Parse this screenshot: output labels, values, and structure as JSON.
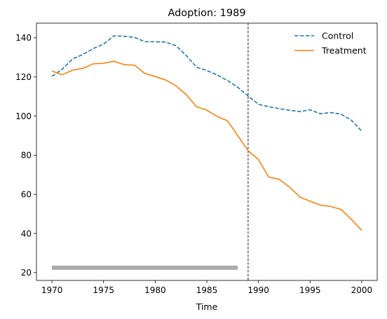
{
  "chart_data": {
    "type": "line",
    "title": "Adoption: 1989",
    "xlabel": "Time",
    "ylabel": "",
    "xlim": [
      1968.5,
      2001.5
    ],
    "ylim": [
      16,
      147.5
    ],
    "xticks": [
      1970,
      1975,
      1980,
      1985,
      1990,
      1995,
      2000
    ],
    "yticks": [
      20,
      40,
      60,
      80,
      100,
      120,
      140
    ],
    "grid": false,
    "legend_position": "top-right",
    "x": [
      1970,
      1971,
      1972,
      1973,
      1974,
      1975,
      1976,
      1977,
      1978,
      1979,
      1980,
      1981,
      1982,
      1983,
      1984,
      1985,
      1986,
      1987,
      1988,
      1989,
      1990,
      1991,
      1992,
      1993,
      1994,
      1995,
      1996,
      1997,
      1998,
      1999,
      2000
    ],
    "series": [
      {
        "name": "Control",
        "color": "#1f77b4",
        "style": "dashed",
        "values": [
          120.3,
          124.0,
          129.2,
          131.5,
          134.5,
          136.8,
          141.0,
          140.8,
          140.2,
          138.0,
          138.0,
          137.8,
          136.0,
          131.0,
          125.0,
          123.3,
          121.0,
          118.2,
          114.7,
          110.3,
          106.0,
          104.8,
          103.8,
          103.0,
          102.3,
          103.2,
          101.2,
          101.8,
          101.0,
          97.9,
          92.3
        ]
      },
      {
        "name": "Treatment",
        "color": "#ff7f0e",
        "style": "solid",
        "values": [
          123.0,
          121.1,
          123.5,
          124.4,
          126.7,
          127.0,
          128.0,
          126.3,
          126.0,
          121.8,
          120.2,
          118.5,
          115.5,
          111.0,
          104.8,
          103.0,
          99.8,
          97.6,
          90.0,
          82.3,
          77.8,
          68.8,
          67.7,
          63.8,
          58.7,
          56.5,
          54.5,
          53.8,
          52.3,
          47.2,
          41.6
        ]
      }
    ],
    "vline": {
      "x": 1989,
      "color": "#000000",
      "style": "dashed"
    },
    "band": {
      "x_start": 1970,
      "x_end": 1988,
      "y": 22.5,
      "color": "#aaaaaa"
    }
  }
}
